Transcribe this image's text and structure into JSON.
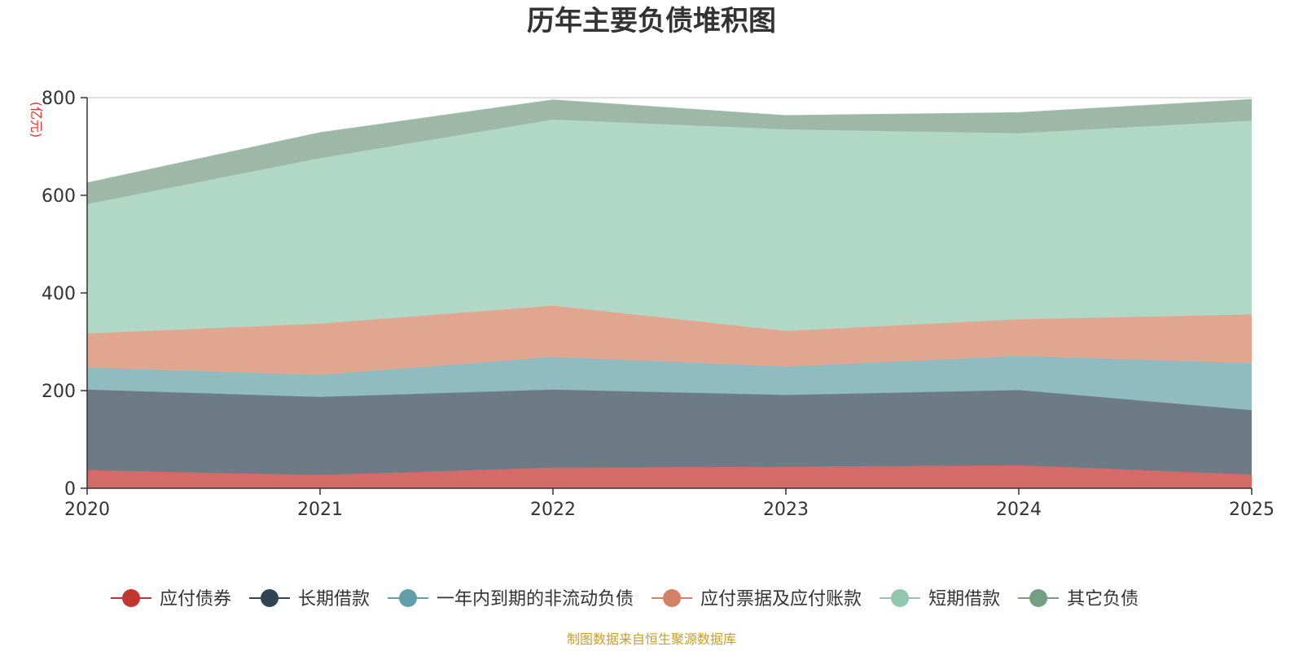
{
  "colors": {
    "title": "#333333",
    "unit": "#e8332f",
    "footer": "#c8a026",
    "axis": "#333333",
    "grid": "#cccccc"
  },
  "footer": "制图数据来自恒生聚源数据库",
  "chart_data": {
    "type": "area",
    "stacked": true,
    "title": "历年主要负债堆积图",
    "unit_label": "(亿元)",
    "xlabel": "",
    "ylabel": "(亿元)",
    "ylim": [
      0,
      800
    ],
    "yticks": [
      0,
      200,
      400,
      600,
      800
    ],
    "x": [
      "2020",
      "2021",
      "2022",
      "2023",
      "2024",
      "2025"
    ],
    "series": [
      {
        "name": "应付债券",
        "color": "#c23531",
        "fill": "#d46b69",
        "values": [
          37,
          27,
          42,
          44,
          47,
          28
        ]
      },
      {
        "name": "长期借款",
        "color": "#2f4554",
        "fill": "#6d7b87",
        "values": [
          165,
          160,
          160,
          147,
          154,
          132
        ]
      },
      {
        "name": "一年内到期的非流动负债",
        "color": "#61a0a8",
        "fill": "#90bbc0",
        "values": [
          45,
          45,
          67,
          58,
          70,
          96
        ]
      },
      {
        "name": "应付票据及应付账款",
        "color": "#d48265",
        "fill": "#e1a690",
        "values": [
          70,
          105,
          105,
          73,
          75,
          100
        ]
      },
      {
        "name": "短期借款",
        "color": "#91c7ae",
        "fill": "#b1d8c6",
        "values": [
          265,
          339,
          381,
          413,
          381,
          397
        ]
      },
      {
        "name": "其它负债",
        "color": "#749f83",
        "fill": "#9eb8a7",
        "values": [
          43,
          52,
          40,
          28,
          42,
          43
        ]
      }
    ],
    "legend_position": "bottom"
  }
}
